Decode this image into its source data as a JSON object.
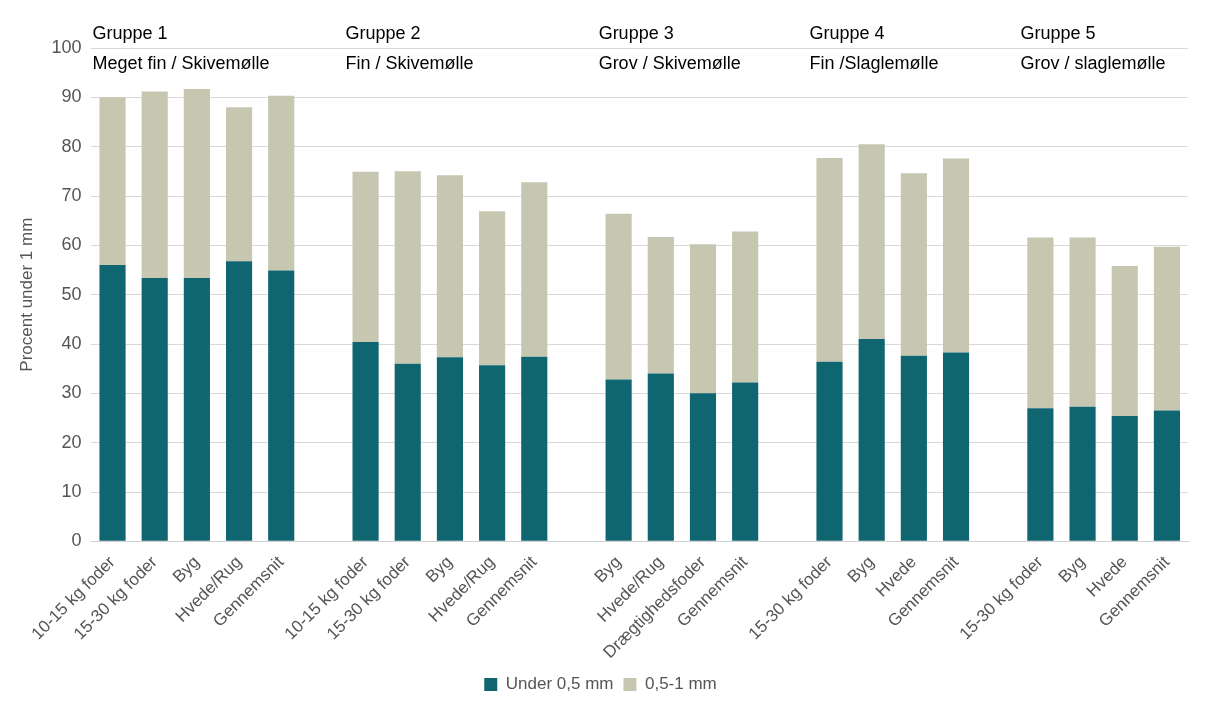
{
  "chart_data": {
    "type": "bar",
    "stacked": true,
    "ylabel": "Procent under 1 mm",
    "categories": [
      "10-15 kg foder",
      "15-30 kg foder",
      "Byg",
      "Hvede/Rug",
      "Gennemsnit",
      null,
      "10-15 kg foder",
      "15-30 kg foder",
      "Byg",
      "Hvede/Rug",
      "Gennemsnit",
      null,
      "Byg",
      "Hvede/Rug",
      "Drægtighedsfoder",
      "Gennemsnit",
      null,
      "15-30 kg foder",
      "Byg",
      "Hvede",
      "Gennemsnit",
      null,
      "15-30 kg foder",
      "Byg",
      "Hvede",
      "Gennemsnit"
    ],
    "series": [
      {
        "name": "Under 0,5 mm",
        "color": "#0f6570",
        "values": [
          56,
          53.4,
          53.4,
          56.8,
          54.9,
          null,
          40.4,
          36,
          37.3,
          35.7,
          37.4,
          null,
          32.8,
          34,
          30,
          32.2,
          null,
          36.4,
          41,
          37.6,
          38.3,
          null,
          27,
          27.3,
          25.4,
          26.5
        ]
      },
      {
        "name": "0,5-1 mm",
        "color": "#c6c6b1",
        "values": [
          34,
          37.8,
          38.3,
          31.2,
          35.4,
          null,
          34.5,
          39,
          36.9,
          31.2,
          35.4,
          null,
          33.6,
          27.7,
          30.2,
          30.6,
          null,
          41.3,
          39.5,
          37,
          39.3,
          null,
          34.6,
          34.3,
          30.4,
          33.2
        ]
      }
    ],
    "ylim": [
      0,
      100
    ],
    "yticks": [
      0,
      10,
      20,
      30,
      40,
      50,
      60,
      70,
      80,
      90,
      100
    ],
    "grid": "y",
    "legend": "bottom",
    "annotations": [
      "Gruppe 1\nMeget fin / Skivemølle",
      "Gruppe 2\nFin / Skivemølle",
      "Gruppe 3\nGrov / Skivemølle",
      "Gruppe 4\nFin /Slaglemølle",
      "Gruppe 5\nGrov / slaglemølle"
    ]
  }
}
